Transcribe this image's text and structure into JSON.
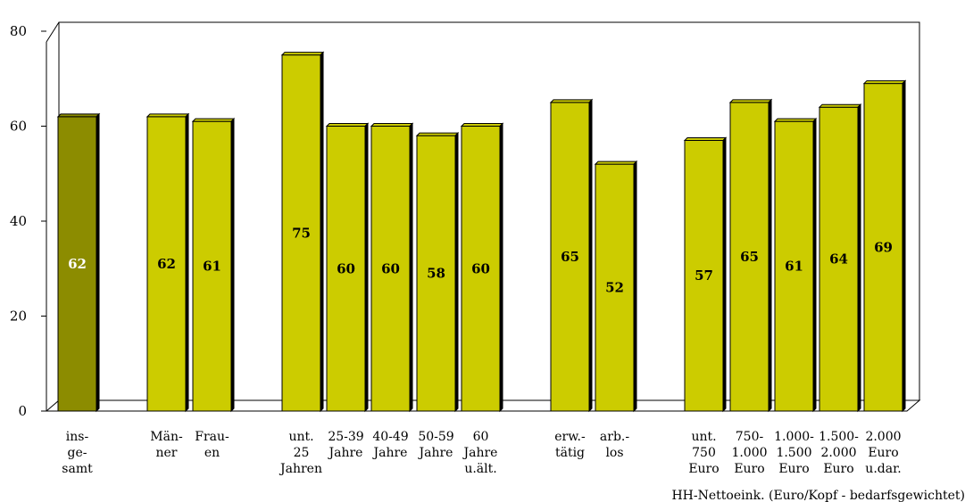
{
  "chart_data": {
    "type": "bar",
    "ylim": [
      0,
      80
    ],
    "yticks": [
      0,
      20,
      40,
      60,
      80
    ],
    "grid": false,
    "legend": "none",
    "xlabel": "HH-Nettoeink. (Euro/Kopf - bedarfsgewichtet)",
    "categories": [
      {
        "lines": [
          "ins-",
          "ge-",
          "samt"
        ],
        "value": 62,
        "highlight": true
      },
      {
        "lines": [
          "Män-",
          "ner"
        ],
        "value": 62
      },
      {
        "lines": [
          "Frau-",
          "en"
        ],
        "value": 61
      },
      {
        "lines": [
          "unt.",
          "25",
          "Jahren"
        ],
        "value": 75
      },
      {
        "lines": [
          "25-39",
          "Jahre"
        ],
        "value": 60
      },
      {
        "lines": [
          "40-49",
          "Jahre"
        ],
        "value": 60
      },
      {
        "lines": [
          "50-59",
          "Jahre"
        ],
        "value": 58
      },
      {
        "lines": [
          "60",
          "Jahre",
          "u.ält."
        ],
        "value": 60
      },
      {
        "lines": [
          "erw.-",
          "tätig"
        ],
        "value": 65
      },
      {
        "lines": [
          "arb.-",
          "los"
        ],
        "value": 52
      },
      {
        "lines": [
          "unt.",
          "750",
          "Euro"
        ],
        "value": 57
      },
      {
        "lines": [
          "750-",
          "1.000",
          "Euro"
        ],
        "value": 65
      },
      {
        "lines": [
          "1.000-",
          "1.500",
          "Euro"
        ],
        "value": 61
      },
      {
        "lines": [
          "1.500-",
          "2.000",
          "Euro"
        ],
        "value": 64
      },
      {
        "lines": [
          "2.000",
          "Euro",
          "u.dar."
        ],
        "value": 69
      }
    ],
    "colors": {
      "bar": "#cccc00",
      "bar_highlight": "#8c8c00",
      "label_default": "#000000",
      "label_highlight": "#ffffff"
    }
  }
}
